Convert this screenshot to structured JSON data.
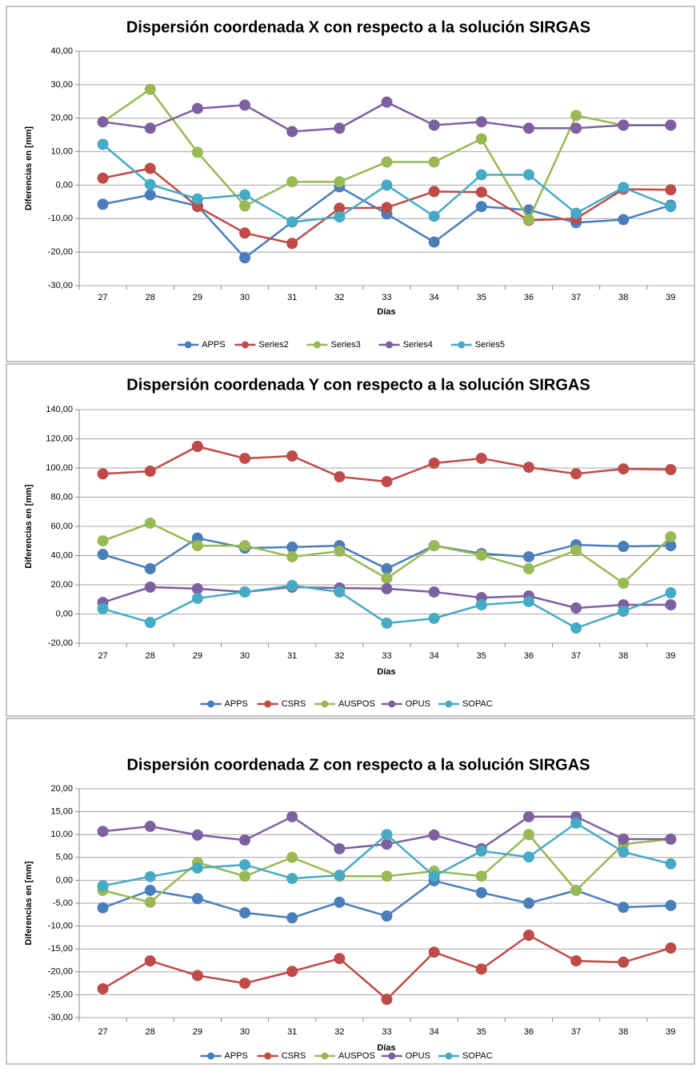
{
  "chart_data": [
    {
      "type": "line",
      "title": "Dispersión coordenada X con respecto a la solución SIRGAS",
      "x_label": "Días",
      "y_label": "Diferencias en [mm]",
      "categories": [
        27,
        28,
        29,
        30,
        31,
        32,
        33,
        34,
        35,
        36,
        37,
        38,
        39
      ],
      "series": [
        {
          "name": "APPS",
          "color": "#4a7ebb",
          "values": [
            -5.7,
            -2.9,
            -6.2,
            -21.7,
            -11,
            -0.5,
            -8.6,
            -17,
            -6.4,
            -7.4,
            -11.2,
            -10.3,
            -6
          ]
        },
        {
          "name": "Series2",
          "color": "#be4b48",
          "values": [
            2.1,
            5,
            -6.4,
            -14.3,
            -17.4,
            -6.9,
            -6.7,
            -1.9,
            -2.1,
            -10.5,
            -10,
            -1.2,
            -1.4
          ]
        },
        {
          "name": "Series3",
          "color": "#98b954",
          "values": [
            18.9,
            28.6,
            9.8,
            -6.2,
            1,
            1,
            6.9,
            6.9,
            13.8,
            -10.3,
            20.8,
            17.9,
            17.9
          ]
        },
        {
          "name": "Series4",
          "color": "#7d60a0",
          "values": [
            18.9,
            17,
            22.9,
            23.9,
            16,
            17,
            24.8,
            17.9,
            18.9,
            17,
            17,
            17.9,
            17.9
          ]
        },
        {
          "name": "Series5",
          "color": "#46aac5",
          "values": [
            12.2,
            0.2,
            -4.1,
            -2.9,
            -11,
            -9.5,
            0,
            -9.3,
            3.1,
            3.1,
            -8.4,
            -0.7,
            -6.4
          ]
        }
      ],
      "ylim": [
        -30,
        40
      ],
      "yticks": [
        {
          "value": -30,
          "label": "-30,00"
        },
        {
          "value": -20,
          "label": "-20,00"
        },
        {
          "value": -10,
          "label": "-10,00"
        },
        {
          "value": 0,
          "label": "0,00"
        },
        {
          "value": 10,
          "label": "10,00"
        },
        {
          "value": 20,
          "label": "20,00"
        },
        {
          "value": 30,
          "label": "30,00"
        },
        {
          "value": 40,
          "label": "40,00"
        }
      ],
      "grid": true,
      "legend": "bottom"
    },
    {
      "type": "line",
      "title": "Dispersión coordenada Y con respecto a la solución SIRGAS",
      "x_label": "Días",
      "y_label": "Diferencias en [mm]",
      "categories": [
        27,
        28,
        29,
        30,
        31,
        32,
        33,
        34,
        35,
        36,
        37,
        38,
        39
      ],
      "series": [
        {
          "name": "APPS",
          "color": "#4a7ebb",
          "values": [
            40.8,
            31,
            52,
            45.2,
            45.8,
            46.8,
            31,
            46.8,
            41.4,
            39.2,
            47.4,
            46.3,
            46.8
          ]
        },
        {
          "name": "CSRS",
          "color": "#be4b48",
          "values": [
            96,
            97.8,
            114.8,
            106.6,
            108.2,
            94,
            90.7,
            103.3,
            106.6,
            100.5,
            96,
            99.4,
            98.9
          ]
        },
        {
          "name": "AUSPOS",
          "color": "#98b954",
          "values": [
            50.1,
            62.2,
            46.8,
            46.8,
            39.2,
            43,
            24.4,
            46.8,
            40.3,
            31,
            43.6,
            21.1,
            52.9
          ]
        },
        {
          "name": "OPUS",
          "color": "#7d60a0",
          "values": [
            7.9,
            18.4,
            17.3,
            15.1,
            18.4,
            17.8,
            17.3,
            15.1,
            11.2,
            12.3,
            4.1,
            6.3,
            6.3
          ]
        },
        {
          "name": "SOPAC",
          "color": "#46aac5",
          "values": [
            3.6,
            -5.8,
            10.7,
            15.1,
            19.5,
            15.1,
            -6.3,
            -3,
            6.3,
            8.5,
            -9.6,
            1.9,
            14.5
          ]
        }
      ],
      "ylim": [
        -20,
        140
      ],
      "yticks": [
        {
          "value": -20,
          "label": "-20,00"
        },
        {
          "value": 0,
          "label": "0,00"
        },
        {
          "value": 20,
          "label": "20,00"
        },
        {
          "value": 40,
          "label": "40,00"
        },
        {
          "value": 60,
          "label": "60,00"
        },
        {
          "value": 80,
          "label": "80,00"
        },
        {
          "value": 100,
          "label": "100,00"
        },
        {
          "value": 120,
          "label": "120,00"
        },
        {
          "value": 140,
          "label": "140,00"
        }
      ],
      "grid": true,
      "legend": "bottom"
    },
    {
      "type": "line",
      "title": "Dispersión coordenada Z con respecto a la solución SIRGAS",
      "x_label": "Días",
      "y_label": "Diferencias en [mm]",
      "categories": [
        27,
        28,
        29,
        30,
        31,
        32,
        33,
        34,
        35,
        36,
        37,
        38,
        39
      ],
      "series": [
        {
          "name": "APPS",
          "color": "#4a7ebb",
          "values": [
            -6,
            -2.2,
            -4,
            -7.1,
            -8.2,
            -4.8,
            -7.8,
            -0.1,
            -2.7,
            -5,
            -2.2,
            -5.9,
            -5.5
          ]
        },
        {
          "name": "CSRS",
          "color": "#be4b48",
          "values": [
            -23.7,
            -17.6,
            -20.8,
            -22.5,
            -19.9,
            -17.1,
            -26,
            -15.7,
            -19.4,
            -12,
            -17.6,
            -17.9,
            -14.8
          ]
        },
        {
          "name": "AUSPOS",
          "color": "#98b954",
          "values": [
            -2.2,
            -4.8,
            3.9,
            0.9,
            5,
            0.9,
            0.9,
            2,
            0.9,
            10,
            -2.2,
            7.9,
            9
          ]
        },
        {
          "name": "OPUS",
          "color": "#7d60a0",
          "values": [
            10.7,
            11.8,
            9.9,
            8.8,
            13.9,
            6.9,
            7.9,
            9.9,
            6.9,
            13.9,
            13.9,
            9,
            9
          ]
        },
        {
          "name": "SOPAC",
          "color": "#46aac5",
          "values": [
            -1.2,
            0.8,
            2.7,
            3.4,
            0.4,
            1.1,
            10,
            0.9,
            6.4,
            5.1,
            12.5,
            6.2,
            3.6
          ]
        }
      ],
      "ylim": [
        -30,
        20
      ],
      "yticks": [
        {
          "value": -30,
          "label": "-30,00"
        },
        {
          "value": -25,
          "label": "-25,00"
        },
        {
          "value": -20,
          "label": "-20,00"
        },
        {
          "value": -15,
          "label": "-15,00"
        },
        {
          "value": -10,
          "label": "-10,00"
        },
        {
          "value": -5,
          "label": "-5,00"
        },
        {
          "value": 0,
          "label": "0,00"
        },
        {
          "value": 5,
          "label": "5,00"
        },
        {
          "value": 10,
          "label": "10,00"
        },
        {
          "value": 15,
          "label": "15,00"
        },
        {
          "value": 20,
          "label": "20,00"
        }
      ],
      "grid": true,
      "legend": "bottom"
    }
  ]
}
